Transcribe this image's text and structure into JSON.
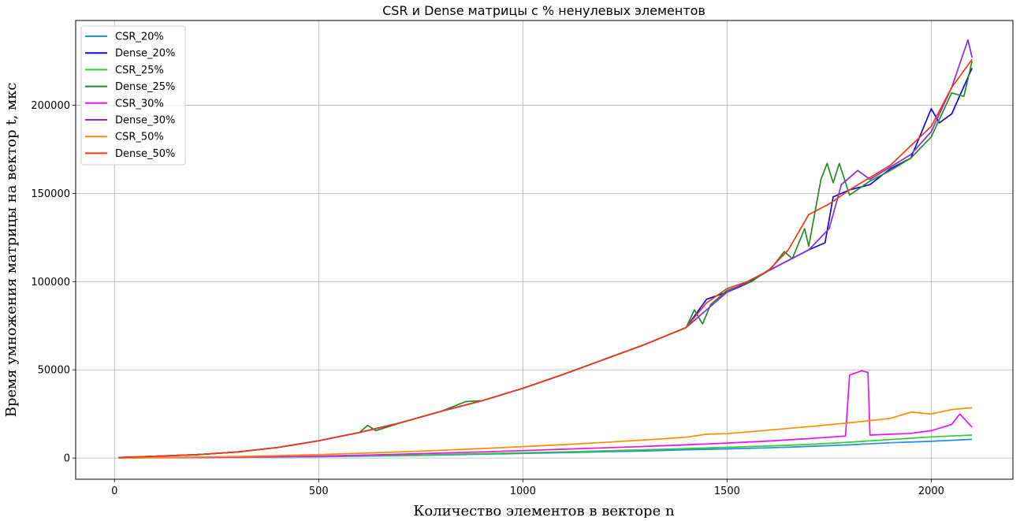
{
  "chart_data": {
    "type": "line",
    "title": "CSR и Dense матрицы с % ненулевых элементов",
    "xlabel": "Количество элементов в векторе n",
    "ylabel": "Время умножения матрицы на вектор t, мкс",
    "xlim": [
      -95,
      2200
    ],
    "ylim": [
      -12000,
      248000
    ],
    "x_ticks": [
      0,
      500,
      1000,
      1500,
      2000
    ],
    "y_ticks": [
      0,
      50000,
      100000,
      150000,
      200000
    ],
    "grid": true,
    "legend_position": "top-left",
    "series": [
      {
        "name": "CSR_20%",
        "color": "#1f8fe5",
        "points": [
          [
            10,
            80
          ],
          [
            100,
            150
          ],
          [
            200,
            250
          ],
          [
            300,
            380
          ],
          [
            400,
            550
          ],
          [
            500,
            750
          ],
          [
            600,
            1050
          ],
          [
            700,
            1350
          ],
          [
            800,
            1700
          ],
          [
            900,
            2150
          ],
          [
            1000,
            2600
          ],
          [
            1100,
            3050
          ],
          [
            1200,
            3550
          ],
          [
            1300,
            4050
          ],
          [
            1400,
            4650
          ],
          [
            1500,
            5200
          ],
          [
            1600,
            5800
          ],
          [
            1700,
            6600
          ],
          [
            1800,
            7500
          ],
          [
            1900,
            8700
          ],
          [
            2000,
            9500
          ],
          [
            2100,
            10600
          ]
        ]
      },
      {
        "name": "Dense_20%",
        "color": "#0a0ae0",
        "points": [
          [
            10,
            300
          ],
          [
            100,
            1000
          ],
          [
            200,
            1900
          ],
          [
            300,
            3400
          ],
          [
            400,
            6000
          ],
          [
            500,
            9800
          ],
          [
            600,
            14500
          ],
          [
            700,
            20000
          ],
          [
            800,
            26500
          ],
          [
            900,
            32500
          ],
          [
            1000,
            39500
          ],
          [
            1100,
            47500
          ],
          [
            1200,
            56000
          ],
          [
            1300,
            64500
          ],
          [
            1400,
            74000
          ],
          [
            1450,
            90000
          ],
          [
            1500,
            94000
          ],
          [
            1550,
            99000
          ],
          [
            1600,
            106000
          ],
          [
            1650,
            112000
          ],
          [
            1700,
            118000
          ],
          [
            1740,
            122000
          ],
          [
            1760,
            148000
          ],
          [
            1800,
            152000
          ],
          [
            1850,
            155000
          ],
          [
            1900,
            164000
          ],
          [
            1950,
            170000
          ],
          [
            2000,
            198000
          ],
          [
            2020,
            190000
          ],
          [
            2050,
            195000
          ],
          [
            2100,
            221000
          ]
        ]
      },
      {
        "name": "CSR_25%",
        "color": "#33cc33",
        "points": [
          [
            10,
            90
          ],
          [
            100,
            180
          ],
          [
            200,
            300
          ],
          [
            300,
            450
          ],
          [
            400,
            650
          ],
          [
            500,
            900
          ],
          [
            600,
            1250
          ],
          [
            700,
            1600
          ],
          [
            800,
            2000
          ],
          [
            900,
            2500
          ],
          [
            1000,
            3000
          ],
          [
            1100,
            3500
          ],
          [
            1200,
            4100
          ],
          [
            1300,
            4700
          ],
          [
            1400,
            5400
          ],
          [
            1500,
            6100
          ],
          [
            1600,
            6800
          ],
          [
            1700,
            7700
          ],
          [
            1800,
            9000
          ],
          [
            1900,
            10500
          ],
          [
            2000,
            12000
          ],
          [
            2100,
            13000
          ]
        ]
      },
      {
        "name": "Dense_25%",
        "color": "#228b22",
        "points": [
          [
            10,
            300
          ],
          [
            100,
            1000
          ],
          [
            200,
            1900
          ],
          [
            300,
            3400
          ],
          [
            400,
            6000
          ],
          [
            500,
            9800
          ],
          [
            600,
            14500
          ],
          [
            620,
            18500
          ],
          [
            640,
            15500
          ],
          [
            700,
            20000
          ],
          [
            800,
            26500
          ],
          [
            860,
            32000
          ],
          [
            900,
            32500
          ],
          [
            1000,
            39500
          ],
          [
            1100,
            47500
          ],
          [
            1200,
            56000
          ],
          [
            1300,
            64500
          ],
          [
            1400,
            74000
          ],
          [
            1420,
            84000
          ],
          [
            1440,
            76000
          ],
          [
            1460,
            87000
          ],
          [
            1500,
            95000
          ],
          [
            1560,
            100000
          ],
          [
            1610,
            108000
          ],
          [
            1640,
            117000
          ],
          [
            1660,
            113000
          ],
          [
            1690,
            130000
          ],
          [
            1700,
            120000
          ],
          [
            1730,
            158000
          ],
          [
            1745,
            167000
          ],
          [
            1760,
            156000
          ],
          [
            1775,
            167000
          ],
          [
            1800,
            149000
          ],
          [
            1850,
            157000
          ],
          [
            1900,
            163000
          ],
          [
            1950,
            170000
          ],
          [
            2000,
            182000
          ],
          [
            2050,
            207000
          ],
          [
            2080,
            205000
          ],
          [
            2100,
            225000
          ]
        ]
      },
      {
        "name": "CSR_30%",
        "color": "#ee11ee",
        "points": [
          [
            10,
            90
          ],
          [
            100,
            200
          ],
          [
            200,
            350
          ],
          [
            300,
            550
          ],
          [
            400,
            800
          ],
          [
            500,
            1150
          ],
          [
            600,
            1600
          ],
          [
            700,
            2200
          ],
          [
            800,
            2800
          ],
          [
            900,
            3500
          ],
          [
            1000,
            4200
          ],
          [
            1100,
            5000
          ],
          [
            1200,
            5800
          ],
          [
            1300,
            6600
          ],
          [
            1400,
            7500
          ],
          [
            1500,
            8500
          ],
          [
            1600,
            9600
          ],
          [
            1700,
            11000
          ],
          [
            1790,
            12500
          ],
          [
            1800,
            47000
          ],
          [
            1830,
            49500
          ],
          [
            1845,
            48500
          ],
          [
            1850,
            13000
          ],
          [
            1900,
            13500
          ],
          [
            1950,
            14000
          ],
          [
            2000,
            15500
          ],
          [
            2050,
            19000
          ],
          [
            2070,
            25000
          ],
          [
            2100,
            17500
          ]
        ]
      },
      {
        "name": "Dense_30%",
        "color": "#8a2be2",
        "points": [
          [
            10,
            300
          ],
          [
            100,
            1000
          ],
          [
            200,
            1900
          ],
          [
            300,
            3400
          ],
          [
            400,
            6000
          ],
          [
            500,
            9800
          ],
          [
            600,
            14500
          ],
          [
            700,
            20000
          ],
          [
            800,
            26500
          ],
          [
            900,
            32500
          ],
          [
            1000,
            39500
          ],
          [
            1100,
            47500
          ],
          [
            1200,
            56000
          ],
          [
            1300,
            64500
          ],
          [
            1400,
            74000
          ],
          [
            1500,
            94000
          ],
          [
            1600,
            106000
          ],
          [
            1700,
            118000
          ],
          [
            1750,
            130000
          ],
          [
            1780,
            155000
          ],
          [
            1820,
            163000
          ],
          [
            1850,
            158000
          ],
          [
            1900,
            165000
          ],
          [
            1950,
            172000
          ],
          [
            2000,
            185000
          ],
          [
            2050,
            210000
          ],
          [
            2090,
            237000
          ],
          [
            2100,
            227000
          ]
        ]
      },
      {
        "name": "CSR_50%",
        "color": "#ff8c00",
        "points": [
          [
            10,
            100
          ],
          [
            100,
            300
          ],
          [
            200,
            550
          ],
          [
            300,
            900
          ],
          [
            400,
            1400
          ],
          [
            500,
            2000
          ],
          [
            600,
            2700
          ],
          [
            700,
            3500
          ],
          [
            800,
            4400
          ],
          [
            900,
            5400
          ],
          [
            1000,
            6500
          ],
          [
            1100,
            7600
          ],
          [
            1200,
            8900
          ],
          [
            1300,
            10300
          ],
          [
            1400,
            11800
          ],
          [
            1450,
            13500
          ],
          [
            1500,
            13800
          ],
          [
            1600,
            15800
          ],
          [
            1700,
            17800
          ],
          [
            1800,
            20000
          ],
          [
            1900,
            22500
          ],
          [
            1950,
            26000
          ],
          [
            2000,
            25000
          ],
          [
            2050,
            27500
          ],
          [
            2100,
            28500
          ]
        ]
      },
      {
        "name": "Dense_50%",
        "color": "#ee3a0e",
        "points": [
          [
            10,
            300
          ],
          [
            100,
            1000
          ],
          [
            200,
            1900
          ],
          [
            300,
            3400
          ],
          [
            400,
            6000
          ],
          [
            500,
            9800
          ],
          [
            600,
            14500
          ],
          [
            700,
            20000
          ],
          [
            800,
            26500
          ],
          [
            900,
            32500
          ],
          [
            1000,
            39500
          ],
          [
            1100,
            47500
          ],
          [
            1200,
            56000
          ],
          [
            1300,
            64500
          ],
          [
            1400,
            74000
          ],
          [
            1450,
            88000
          ],
          [
            1500,
            96000
          ],
          [
            1550,
            100000
          ],
          [
            1600,
            106000
          ],
          [
            1650,
            118000
          ],
          [
            1700,
            138000
          ],
          [
            1750,
            144000
          ],
          [
            1800,
            152000
          ],
          [
            1850,
            159000
          ],
          [
            1900,
            166000
          ],
          [
            1950,
            177000
          ],
          [
            2000,
            188000
          ],
          [
            2050,
            210000
          ],
          [
            2100,
            226000
          ]
        ]
      }
    ]
  }
}
